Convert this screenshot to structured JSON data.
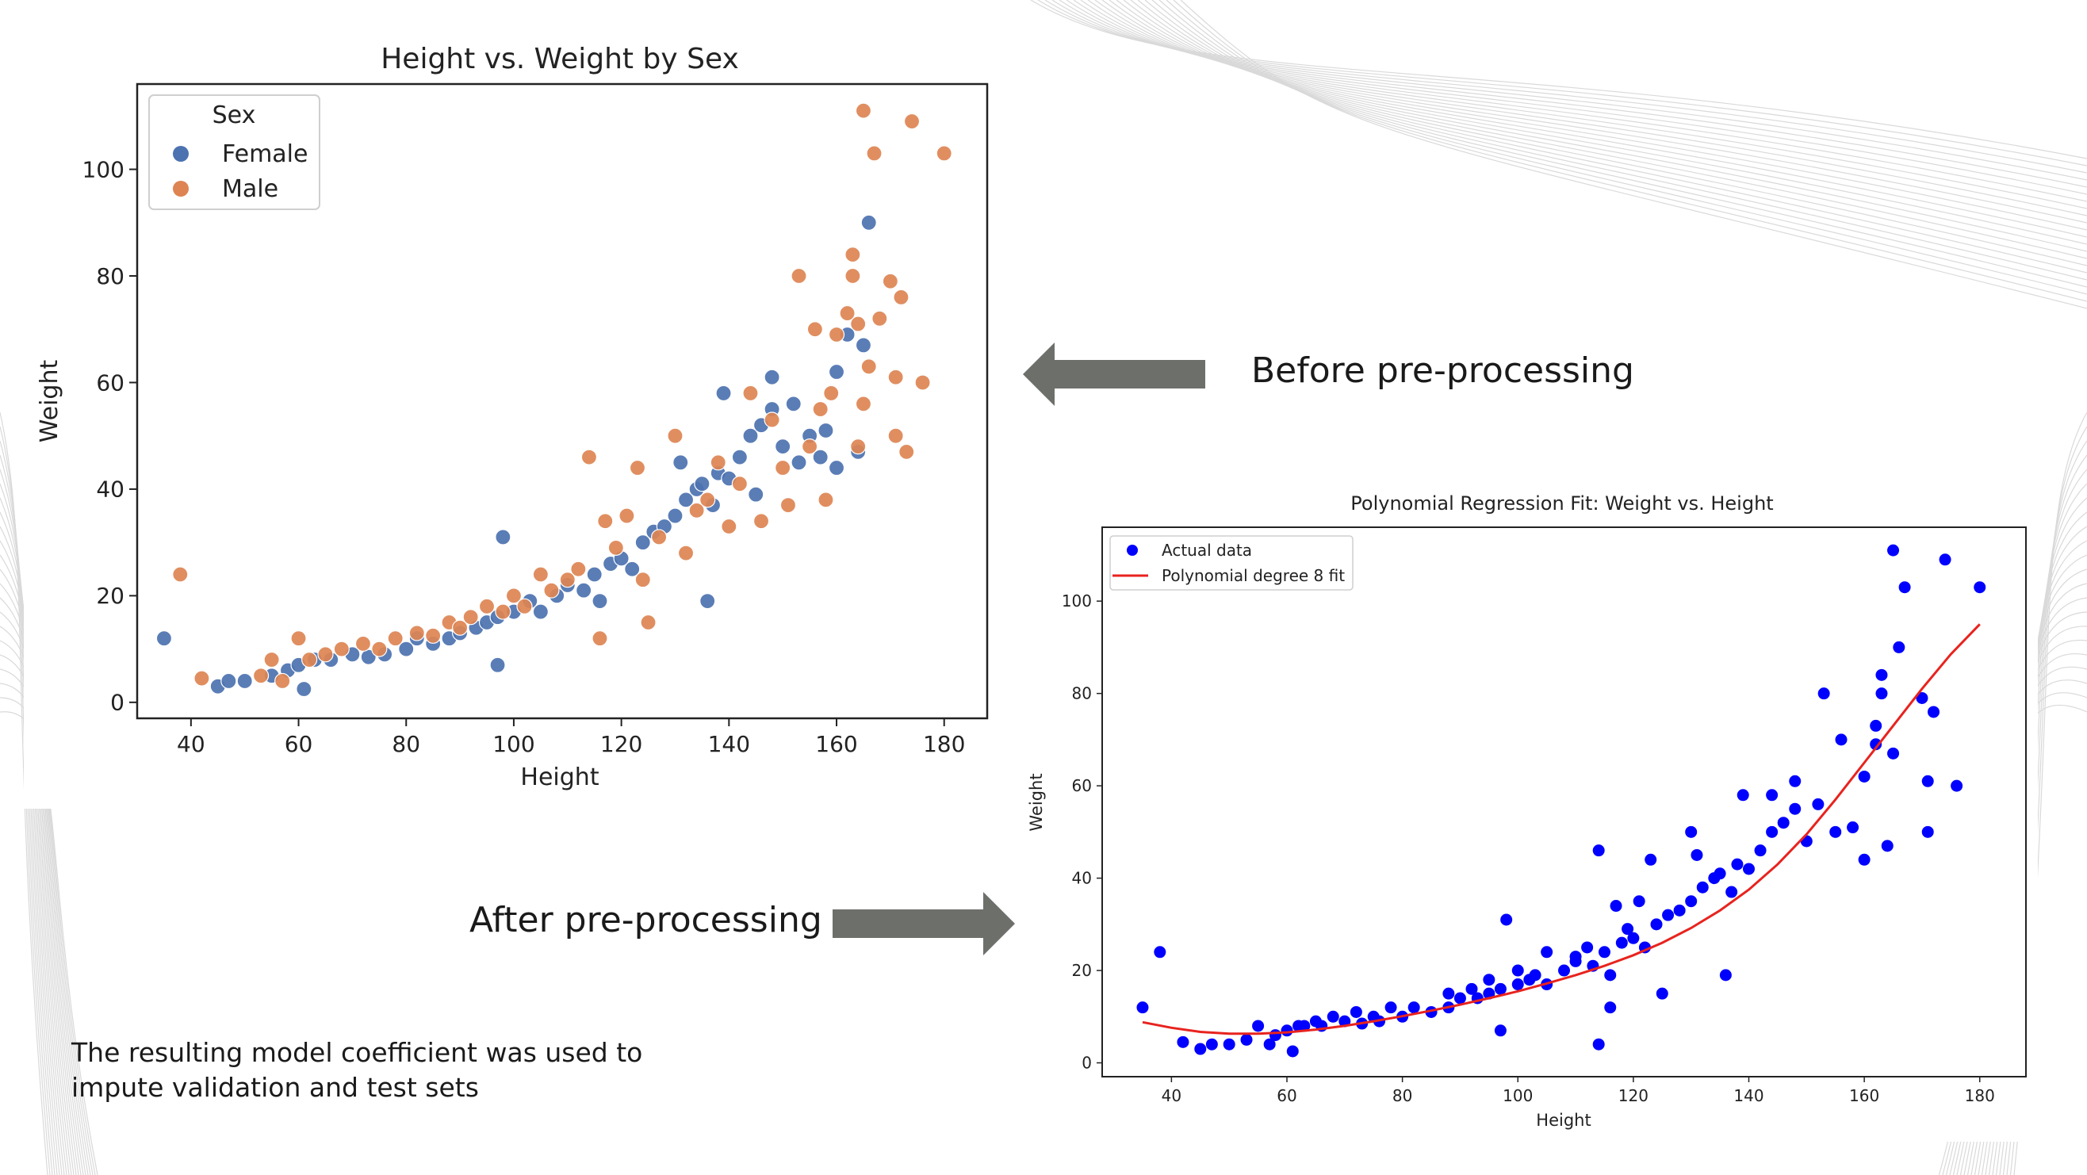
{
  "slide": {
    "before_label": "Before pre-processing",
    "after_label": "After pre-processing",
    "note_line1": "The resulting model coefficient was used to",
    "note_line2": "impute validation and test sets",
    "arrow_color": "#6d6f6b"
  },
  "chart_data": [
    {
      "type": "scatter",
      "title": "Height vs. Weight by Sex",
      "xlabel": "Height",
      "ylabel": "Weight",
      "xlim": [
        30,
        188
      ],
      "ylim": [
        -3,
        116
      ],
      "xticks": [
        40,
        60,
        80,
        100,
        120,
        140,
        160,
        180
      ],
      "yticks": [
        0,
        20,
        40,
        60,
        80,
        100
      ],
      "grid": false,
      "legend": {
        "title": "Sex",
        "position": "top-left"
      },
      "series": [
        {
          "name": "Female",
          "color": "#4c72b0",
          "points": [
            [
              35,
              12
            ],
            [
              45,
              3
            ],
            [
              47,
              4
            ],
            [
              50,
              4
            ],
            [
              55,
              5
            ],
            [
              58,
              6
            ],
            [
              60,
              7
            ],
            [
              61,
              2.5
            ],
            [
              63,
              8
            ],
            [
              66,
              8
            ],
            [
              70,
              9
            ],
            [
              73,
              8.5
            ],
            [
              76,
              9
            ],
            [
              80,
              10
            ],
            [
              82,
              12
            ],
            [
              85,
              11
            ],
            [
              88,
              12
            ],
            [
              90,
              13
            ],
            [
              93,
              14
            ],
            [
              95,
              15
            ],
            [
              97,
              16
            ],
            [
              97,
              7
            ],
            [
              98,
              31
            ],
            [
              100,
              17
            ],
            [
              103,
              19
            ],
            [
              105,
              17
            ],
            [
              108,
              20
            ],
            [
              110,
              22
            ],
            [
              113,
              21
            ],
            [
              115,
              24
            ],
            [
              116,
              19
            ],
            [
              118,
              26
            ],
            [
              120,
              27
            ],
            [
              122,
              25
            ],
            [
              124,
              30
            ],
            [
              126,
              32
            ],
            [
              128,
              33
            ],
            [
              130,
              35
            ],
            [
              131,
              45
            ],
            [
              132,
              38
            ],
            [
              134,
              40
            ],
            [
              135,
              41
            ],
            [
              136,
              19
            ],
            [
              137,
              37
            ],
            [
              138,
              43
            ],
            [
              139,
              58
            ],
            [
              140,
              42
            ],
            [
              142,
              46
            ],
            [
              144,
              50
            ],
            [
              145,
              39
            ],
            [
              146,
              52
            ],
            [
              148,
              55
            ],
            [
              148,
              61
            ],
            [
              150,
              48
            ],
            [
              152,
              56
            ],
            [
              153,
              45
            ],
            [
              155,
              50
            ],
            [
              157,
              46
            ],
            [
              158,
              51
            ],
            [
              160,
              62
            ],
            [
              160,
              44
            ],
            [
              162,
              69
            ],
            [
              164,
              47
            ],
            [
              165,
              67
            ],
            [
              166,
              90
            ]
          ]
        },
        {
          "name": "Male",
          "color": "#dd8452",
          "points": [
            [
              38,
              24
            ],
            [
              42,
              4.5
            ],
            [
              53,
              5
            ],
            [
              55,
              8
            ],
            [
              57,
              4
            ],
            [
              60,
              12
            ],
            [
              62,
              8
            ],
            [
              65,
              9
            ],
            [
              68,
              10
            ],
            [
              72,
              11
            ],
            [
              75,
              10
            ],
            [
              78,
              12
            ],
            [
              82,
              13
            ],
            [
              85,
              12.5
            ],
            [
              88,
              15
            ],
            [
              90,
              14
            ],
            [
              92,
              16
            ],
            [
              95,
              18
            ],
            [
              98,
              17
            ],
            [
              100,
              20
            ],
            [
              102,
              18
            ],
            [
              105,
              24
            ],
            [
              107,
              21
            ],
            [
              110,
              23
            ],
            [
              112,
              25
            ],
            [
              114,
              46
            ],
            [
              116,
              12
            ],
            [
              117,
              34
            ],
            [
              119,
              29
            ],
            [
              121,
              35
            ],
            [
              123,
              44
            ],
            [
              124,
              23
            ],
            [
              125,
              15
            ],
            [
              127,
              31
            ],
            [
              130,
              50
            ],
            [
              132,
              28
            ],
            [
              134,
              36
            ],
            [
              136,
              38
            ],
            [
              138,
              45
            ],
            [
              140,
              33
            ],
            [
              142,
              41
            ],
            [
              144,
              58
            ],
            [
              146,
              34
            ],
            [
              148,
              53
            ],
            [
              150,
              44
            ],
            [
              151,
              37
            ],
            [
              153,
              80
            ],
            [
              155,
              48
            ],
            [
              156,
              70
            ],
            [
              157,
              55
            ],
            [
              158,
              38
            ],
            [
              159,
              58
            ],
            [
              160,
              69
            ],
            [
              162,
              73
            ],
            [
              163,
              80
            ],
            [
              163,
              84
            ],
            [
              164,
              48
            ],
            [
              164,
              71
            ],
            [
              165,
              111
            ],
            [
              165,
              56
            ],
            [
              166,
              63
            ],
            [
              167,
              103
            ],
            [
              168,
              72
            ],
            [
              170,
              79
            ],
            [
              171,
              50
            ],
            [
              171,
              61
            ],
            [
              172,
              76
            ],
            [
              173,
              47
            ],
            [
              174,
              109
            ],
            [
              176,
              60
            ],
            [
              180,
              103
            ]
          ]
        }
      ]
    },
    {
      "type": "scatter",
      "title": "Polynomial Regression Fit: Weight vs. Height",
      "xlabel": "Height",
      "ylabel": "Weight",
      "xlim": [
        28,
        188
      ],
      "ylim": [
        -3,
        116
      ],
      "xticks": [
        40,
        60,
        80,
        100,
        120,
        140,
        160,
        180
      ],
      "yticks": [
        0,
        20,
        40,
        60,
        80,
        100
      ],
      "grid": false,
      "legend": {
        "position": "top-left"
      },
      "series": [
        {
          "name": "Actual data",
          "color": "#0000ff",
          "points": [
            [
              35,
              12
            ],
            [
              38,
              24
            ],
            [
              42,
              4.5
            ],
            [
              45,
              3
            ],
            [
              47,
              4
            ],
            [
              50,
              4
            ],
            [
              53,
              5
            ],
            [
              55,
              8
            ],
            [
              57,
              4
            ],
            [
              58,
              6
            ],
            [
              60,
              7
            ],
            [
              61,
              2.5
            ],
            [
              62,
              8
            ],
            [
              63,
              8
            ],
            [
              65,
              9
            ],
            [
              66,
              8
            ],
            [
              68,
              10
            ],
            [
              70,
              9
            ],
            [
              72,
              11
            ],
            [
              73,
              8.5
            ],
            [
              75,
              10
            ],
            [
              76,
              9
            ],
            [
              78,
              12
            ],
            [
              80,
              10
            ],
            [
              82,
              12
            ],
            [
              85,
              11
            ],
            [
              88,
              12
            ],
            [
              88,
              15
            ],
            [
              90,
              14
            ],
            [
              92,
              16
            ],
            [
              93,
              14
            ],
            [
              95,
              15
            ],
            [
              95,
              18
            ],
            [
              97,
              16
            ],
            [
              97,
              7
            ],
            [
              98,
              31
            ],
            [
              100,
              17
            ],
            [
              100,
              20
            ],
            [
              102,
              18
            ],
            [
              103,
              19
            ],
            [
              105,
              17
            ],
            [
              105,
              24
            ],
            [
              108,
              20
            ],
            [
              110,
              22
            ],
            [
              110,
              23
            ],
            [
              112,
              25
            ],
            [
              113,
              21
            ],
            [
              114,
              46
            ],
            [
              114,
              4
            ],
            [
              115,
              24
            ],
            [
              116,
              12
            ],
            [
              116,
              19
            ],
            [
              117,
              34
            ],
            [
              118,
              26
            ],
            [
              119,
              29
            ],
            [
              120,
              27
            ],
            [
              121,
              35
            ],
            [
              122,
              25
            ],
            [
              123,
              44
            ],
            [
              124,
              30
            ],
            [
              125,
              15
            ],
            [
              126,
              32
            ],
            [
              128,
              33
            ],
            [
              130,
              35
            ],
            [
              130,
              50
            ],
            [
              131,
              45
            ],
            [
              132,
              38
            ],
            [
              134,
              40
            ],
            [
              135,
              41
            ],
            [
              136,
              19
            ],
            [
              137,
              37
            ],
            [
              138,
              43
            ],
            [
              139,
              58
            ],
            [
              140,
              42
            ],
            [
              142,
              46
            ],
            [
              144,
              50
            ],
            [
              144,
              58
            ],
            [
              146,
              52
            ],
            [
              148,
              55
            ],
            [
              148,
              61
            ],
            [
              150,
              48
            ],
            [
              152,
              56
            ],
            [
              153,
              80
            ],
            [
              155,
              50
            ],
            [
              156,
              70
            ],
            [
              158,
              51
            ],
            [
              160,
              62
            ],
            [
              160,
              44
            ],
            [
              162,
              69
            ],
            [
              162,
              73
            ],
            [
              163,
              80
            ],
            [
              163,
              84
            ],
            [
              164,
              47
            ],
            [
              165,
              67
            ],
            [
              165,
              111
            ],
            [
              166,
              90
            ],
            [
              167,
              103
            ],
            [
              170,
              79
            ],
            [
              171,
              50
            ],
            [
              171,
              61
            ],
            [
              172,
              76
            ],
            [
              174,
              109
            ],
            [
              176,
              60
            ],
            [
              180,
              103
            ]
          ]
        }
      ],
      "fit": {
        "name": "Polynomial degree 8 fit",
        "color": "#e8231e",
        "x": [
          35,
          40,
          45,
          50,
          55,
          60,
          65,
          70,
          75,
          80,
          85,
          90,
          95,
          100,
          105,
          110,
          115,
          120,
          125,
          130,
          135,
          140,
          145,
          150,
          155,
          160,
          165,
          170,
          175,
          180
        ],
        "y": [
          8.8,
          7.6,
          6.7,
          6.3,
          6.3,
          6.6,
          7.2,
          8.0,
          9.0,
          10.1,
          11.3,
          12.6,
          14.0,
          15.5,
          17.2,
          19.0,
          21.0,
          23.3,
          26.0,
          29.2,
          33.0,
          37.5,
          43.0,
          49.5,
          57.0,
          65.0,
          73.0,
          81.0,
          88.5,
          95.0
        ]
      }
    }
  ]
}
